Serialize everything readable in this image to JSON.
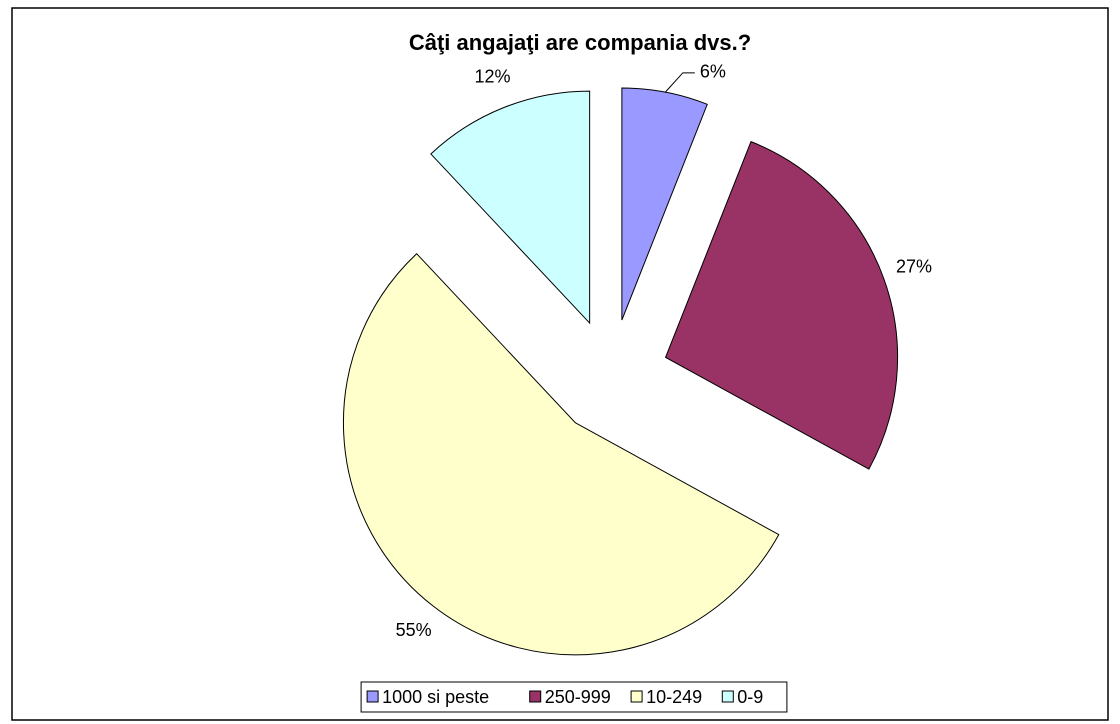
{
  "chart_data": {
    "type": "pie",
    "title": "Câţi angajaţi are compania dvs.?",
    "categories": [
      "1000 si peste",
      "250-999",
      "10-249",
      "0-9"
    ],
    "values": [
      6,
      27,
      55,
      12
    ],
    "value_labels": [
      "6%",
      "27%",
      "55%",
      "12%"
    ],
    "colors": [
      "#9999ff",
      "#993366",
      "#ffffcc",
      "#ccffff"
    ],
    "legend": "bottom"
  }
}
